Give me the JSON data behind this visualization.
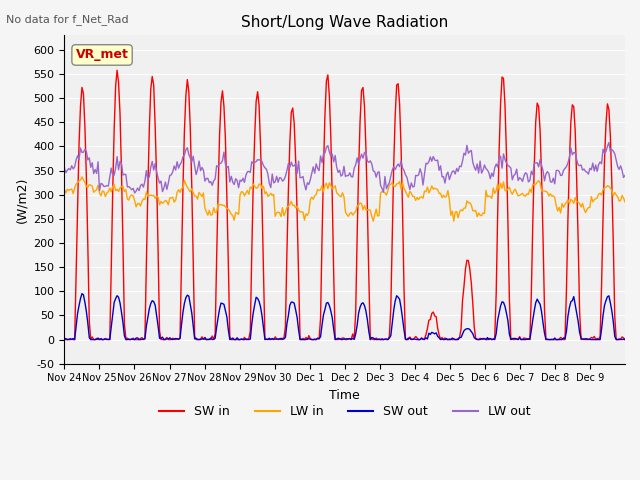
{
  "title": "Short/Long Wave Radiation",
  "subtitle": "No data for f_Net_Rad",
  "xlabel": "Time",
  "ylabel": "(W/m2)",
  "ylim": [
    -50,
    630
  ],
  "yticks": [
    -50,
    0,
    50,
    100,
    150,
    200,
    250,
    300,
    350,
    400,
    450,
    500,
    550,
    600
  ],
  "x_tick_positions": [
    0,
    1,
    2,
    3,
    4,
    5,
    6,
    7,
    8,
    9,
    10,
    11,
    12,
    13,
    14,
    15
  ],
  "x_tick_labels": [
    "Nov 24",
    "Nov 25",
    "Nov 26",
    "Nov 27",
    "Nov 28",
    "Nov 29",
    "Nov 30",
    "Dec 1",
    "Dec 2",
    "Dec 3",
    "Dec 4",
    "Dec 5",
    "Dec 6",
    "Dec 7",
    "Dec 8",
    "Dec 9"
  ],
  "legend_label": "VR_met",
  "legend_entries": [
    "SW in",
    "LW in",
    "SW out",
    "LW out"
  ],
  "legend_colors": [
    "#ff0000",
    "#ffa500",
    "#0000cc",
    "#9966cc"
  ],
  "sw_in_color": "#ff0000",
  "lw_in_color": "#ffa500",
  "sw_out_color": "#0000cc",
  "lw_out_color": "#9966cc",
  "plot_bg_color": "#f0f0f0",
  "n_days": 16
}
